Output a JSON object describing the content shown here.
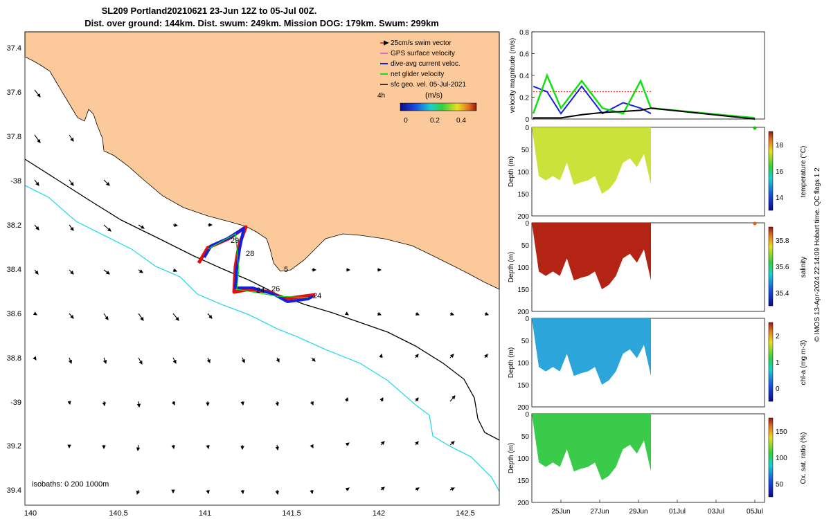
{
  "title": {
    "line1": "SL209 Portland20210621 23-Jun 12Z to 05-Jul 00Z.",
    "line2": "Dist. over ground: 144km. Dist. swum: 249km. Mission DOG: 179km. Swum: 299km"
  },
  "copyright": "© IMOS 13-Apr-2024 22:14:09 Hobart time. QC flags 1  2",
  "colors": {
    "land": "#fbc99a",
    "isobath0": "#000000",
    "isobath200": "#000000",
    "isobath1000": "#2ed8e8",
    "swim_vector": "#e01010",
    "gps_surface": "#e040e0",
    "dive_avg": "#1020e0",
    "net_glider": "#10e010",
    "sfc_geo": "#000000"
  },
  "map": {
    "lat_ticks": [
      "37.4",
      "37.6",
      "37.8",
      "-38",
      "38.2",
      "38.4",
      "38.6",
      "38.8",
      "-39",
      "39.2",
      "39.4"
    ],
    "lon_ticks": [
      "140",
      "140.5",
      "141",
      "141.5",
      "142",
      "142.5"
    ],
    "isobaths_label": "isobaths: 0   200  1000m",
    "track_labels": [
      "29",
      "28",
      "5",
      "26",
      "24",
      "24"
    ],
    "legend": {
      "items": [
        "25cm/s swim vector",
        "GPS surface velocity",
        "dive-avg current veloc.",
        "net glider velocity",
        "sfc geo. vel. 05-Jul-2021"
      ],
      "duration": "4h",
      "units": "(m/s)",
      "colorbar_ticks": [
        "0",
        "0.2",
        "0.4"
      ]
    }
  },
  "chart_data": [
    {
      "type": "line",
      "ylabel": "velocity magnitude (m/s)",
      "ylim": [
        0,
        0.8
      ],
      "yticks": [
        "0",
        "0.2",
        "0.4",
        "0.6",
        "0.8"
      ],
      "x": [
        "23-Jun",
        "24-Jun",
        "25-Jun",
        "26-Jun",
        "27-Jun",
        "28-Jun",
        "29-Jun",
        "29-Jun",
        "05-Jul"
      ],
      "series": [
        {
          "name": "swim vector",
          "values": [
            0.25,
            0.25,
            0.25,
            0.25,
            0.25,
            0.25,
            0.25,
            0.25,
            null
          ]
        },
        {
          "name": "dive-avg current veloc.",
          "values": [
            0.3,
            0.25,
            0.05,
            0.3,
            0.05,
            0.15,
            0.1,
            0.05,
            null
          ]
        },
        {
          "name": "net glider velocity",
          "values": [
            0.05,
            0.4,
            0.1,
            0.35,
            0.1,
            0.05,
            0.35,
            0.1,
            0.01
          ]
        },
        {
          "name": "sfc geo. vel.",
          "values": [
            0.01,
            0.01,
            0.01,
            0.04,
            0.06,
            0.07,
            0.08,
            0.1,
            0.0
          ]
        }
      ]
    },
    {
      "type": "heatmap",
      "ylabel": "Depth (m)",
      "cbar_label": "temperature (°C)",
      "cbar_ticks": [
        "14",
        "16",
        "18"
      ],
      "yticks": [
        "0",
        "50",
        "100",
        "150",
        "200"
      ]
    },
    {
      "type": "heatmap",
      "ylabel": "Depth (m)",
      "cbar_label": "salinity",
      "cbar_ticks": [
        "35.4",
        "35.6",
        "35.8"
      ],
      "yticks": [
        "0",
        "50",
        "100",
        "150",
        "200"
      ]
    },
    {
      "type": "heatmap",
      "ylabel": "Depth (m)",
      "cbar_label": "chl-a (mg m-3)",
      "cbar_ticks": [
        "0",
        "1",
        "2"
      ],
      "yticks": [
        "0",
        "50",
        "100",
        "150",
        "200"
      ]
    },
    {
      "type": "heatmap",
      "ylabel": "Depth (m)",
      "cbar_label": "Ox. sat. ratio (%)",
      "cbar_ticks": [
        "50",
        "100",
        "150"
      ],
      "yticks": [
        "0",
        "50",
        "100",
        "150",
        "200"
      ]
    }
  ],
  "time_axis": {
    "ticks": [
      "25Jun",
      "27Jun",
      "29Jun",
      "01Jul",
      "03Jul",
      "05Jul"
    ]
  }
}
